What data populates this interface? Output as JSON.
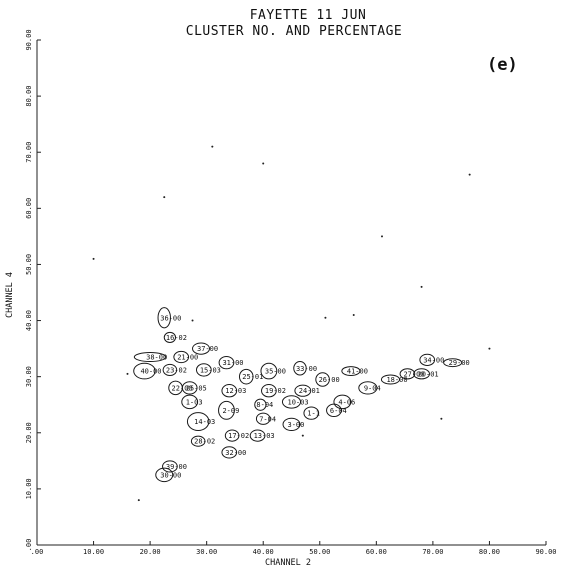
{
  "chart_data": {
    "type": "scatter",
    "title": "FAYETTE 11 JUN",
    "subtitle": "CLUSTER NO. AND PERCENTAGE",
    "panel_label": "(e)",
    "xlabel": "CHANNEL  2",
    "ylabel": "CHANNEL  4",
    "xlim": [
      0,
      90
    ],
    "ylim": [
      0,
      90
    ],
    "xticks": [
      ".00",
      "10.00",
      "20.00",
      "30.00",
      "40.00",
      "50.00",
      "60.00",
      "70.00",
      "80.00",
      "90.00"
    ],
    "yticks": [
      ".00",
      "10.00",
      "20.00",
      "30.00",
      "40.00",
      "50.00",
      "60.00",
      "70.00",
      "80.00",
      "90.00"
    ],
    "grid": false,
    "points": [
      {
        "label": "36-00",
        "x": 22.5,
        "y": 40.5,
        "rx": 1.1,
        "ry": 1.8
      },
      {
        "label": "16-02",
        "x": 23.5,
        "y": 37.0,
        "rx": 1.0,
        "ry": 0.9
      },
      {
        "label": "37-00",
        "x": 29.0,
        "y": 35.0,
        "rx": 1.5,
        "ry": 1.0
      },
      {
        "label": "38-00",
        "x": 20.0,
        "y": 33.5,
        "rx": 2.8,
        "ry": 0.8
      },
      {
        "label": "21-00",
        "x": 25.5,
        "y": 33.5,
        "rx": 1.3,
        "ry": 1.0
      },
      {
        "label": "31-00",
        "x": 33.5,
        "y": 32.5,
        "rx": 1.3,
        "ry": 1.1
      },
      {
        "label": "40-00",
        "x": 19.0,
        "y": 31.0,
        "rx": 1.9,
        "ry": 1.4
      },
      {
        "label": "23-02",
        "x": 23.5,
        "y": 31.2,
        "rx": 1.2,
        "ry": 1.0
      },
      {
        "label": "15-03",
        "x": 29.5,
        "y": 31.2,
        "rx": 1.3,
        "ry": 1.1
      },
      {
        "label": "25-01",
        "x": 37.0,
        "y": 30.0,
        "rx": 1.2,
        "ry": 1.3
      },
      {
        "label": "35-00",
        "x": 41.0,
        "y": 31.0,
        "rx": 1.4,
        "ry": 1.4
      },
      {
        "label": "33-00",
        "x": 46.5,
        "y": 31.5,
        "rx": 1.1,
        "ry": 1.2
      },
      {
        "label": "26-00",
        "x": 50.5,
        "y": 29.5,
        "rx": 1.2,
        "ry": 1.2
      },
      {
        "label": "41-00",
        "x": 55.5,
        "y": 31.0,
        "rx": 1.6,
        "ry": 0.8
      },
      {
        "label": "34-00",
        "x": 69.0,
        "y": 33.0,
        "rx": 1.3,
        "ry": 1.0
      },
      {
        "label": "29-00",
        "x": 73.5,
        "y": 32.5,
        "rx": 1.6,
        "ry": 0.7
      },
      {
        "label": "22-00",
        "x": 24.5,
        "y": 28.0,
        "rx": 1.2,
        "ry": 1.2
      },
      {
        "label": "25-05",
        "x": 27.0,
        "y": 28.0,
        "rx": 1.3,
        "ry": 1.1
      },
      {
        "label": "12-03",
        "x": 34.0,
        "y": 27.5,
        "rx": 1.3,
        "ry": 1.1
      },
      {
        "label": "19-02",
        "x": 41.0,
        "y": 27.5,
        "rx": 1.3,
        "ry": 1.1
      },
      {
        "label": "24-01",
        "x": 47.0,
        "y": 27.5,
        "rx": 1.4,
        "ry": 1.0
      },
      {
        "label": "9-04",
        "x": 58.5,
        "y": 28.0,
        "rx": 1.6,
        "ry": 1.1
      },
      {
        "label": "27-00",
        "x": 65.5,
        "y": 30.5,
        "rx": 1.3,
        "ry": 0.9
      },
      {
        "label": "20-01",
        "x": 68.0,
        "y": 30.5,
        "rx": 1.4,
        "ry": 0.9
      },
      {
        "label": "18-00",
        "x": 62.5,
        "y": 29.5,
        "rx": 1.6,
        "ry": 0.8
      },
      {
        "label": "1-03",
        "x": 27.0,
        "y": 25.5,
        "rx": 1.4,
        "ry": 1.2
      },
      {
        "label": "8-04",
        "x": 39.5,
        "y": 25.0,
        "rx": 1.0,
        "ry": 1.0
      },
      {
        "label": "10-03",
        "x": 45.0,
        "y": 25.5,
        "rx": 1.6,
        "ry": 1.1
      },
      {
        "label": "4-06",
        "x": 54.0,
        "y": 25.5,
        "rx": 1.5,
        "ry": 1.2
      },
      {
        "label": "2-09",
        "x": 33.5,
        "y": 24.0,
        "rx": 1.4,
        "ry": 1.6
      },
      {
        "label": "1-1",
        "x": 48.5,
        "y": 23.5,
        "rx": 1.3,
        "ry": 1.1
      },
      {
        "label": "6-04",
        "x": 52.5,
        "y": 24.0,
        "rx": 1.3,
        "ry": 1.1
      },
      {
        "label": "14-03",
        "x": 28.5,
        "y": 22.0,
        "rx": 1.9,
        "ry": 1.6
      },
      {
        "label": "7-04",
        "x": 40.0,
        "y": 22.5,
        "rx": 1.2,
        "ry": 1.0
      },
      {
        "label": "3-00",
        "x": 45.0,
        "y": 21.5,
        "rx": 1.5,
        "ry": 1.1
      },
      {
        "label": "17-02",
        "x": 34.5,
        "y": 19.5,
        "rx": 1.2,
        "ry": 1.0
      },
      {
        "label": "13-03",
        "x": 39.0,
        "y": 19.5,
        "rx": 1.3,
        "ry": 1.0
      },
      {
        "label": "28-02",
        "x": 28.5,
        "y": 18.5,
        "rx": 1.2,
        "ry": 0.9
      },
      {
        "label": "32-00",
        "x": 34.0,
        "y": 16.5,
        "rx": 1.3,
        "ry": 1.0
      },
      {
        "label": "39-00",
        "x": 23.5,
        "y": 14.0,
        "rx": 1.3,
        "ry": 1.0
      },
      {
        "label": "30-00",
        "x": 22.5,
        "y": 12.5,
        "rx": 1.5,
        "ry": 1.2
      }
    ],
    "scatter_dots": [
      {
        "x": 31.0,
        "y": 71.0
      },
      {
        "x": 76.5,
        "y": 66.0
      },
      {
        "x": 22.5,
        "y": 62.0
      },
      {
        "x": 40.0,
        "y": 68.0
      },
      {
        "x": 10.0,
        "y": 51.0
      },
      {
        "x": 61.0,
        "y": 55.0
      },
      {
        "x": 51.0,
        "y": 40.5
      },
      {
        "x": 68.0,
        "y": 46.0
      },
      {
        "x": 80.0,
        "y": 35.0
      },
      {
        "x": 71.5,
        "y": 22.5
      },
      {
        "x": 47.0,
        "y": 19.5
      },
      {
        "x": 27.5,
        "y": 40.0
      },
      {
        "x": 16.0,
        "y": 30.5
      },
      {
        "x": 56.0,
        "y": 41.0
      },
      {
        "x": 18.0,
        "y": 8.0
      }
    ]
  }
}
